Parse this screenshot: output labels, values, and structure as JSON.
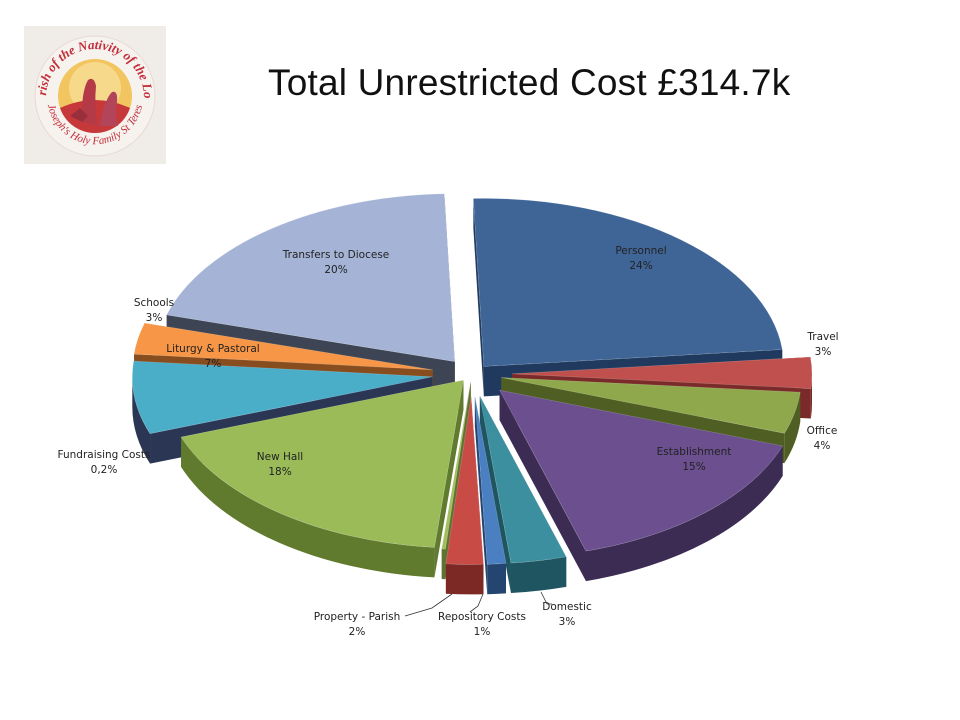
{
  "logo": {
    "ring_top": "Parish of the Nativity of the Lord",
    "ring_bottom": "St Joseph's Holy Family St Teresa's",
    "colors": {
      "ring": "#c42d3a",
      "center_sun": "#f1b63d",
      "center_red": "#c7383b"
    }
  },
  "chart_data": {
    "type": "pie",
    "style": "3d-exploded",
    "title": "Total Unrestricted Cost £314.7k",
    "slices": [
      {
        "label": "Personnel",
        "value_label": "24%",
        "value": 24,
        "color": "#3f6597",
        "side_color": "#1f3a5e"
      },
      {
        "label": "Travel",
        "value_label": "3%",
        "value": 3,
        "color": "#c0504d",
        "side_color": "#7a2b29"
      },
      {
        "label": "Office",
        "value_label": "4%",
        "value": 4,
        "color": "#8fa84c",
        "side_color": "#4f5f23"
      },
      {
        "label": "Establishment",
        "value_label": "15%",
        "value": 15,
        "color": "#6b4f8f",
        "side_color": "#3c2b52"
      },
      {
        "label": "Domestic",
        "value_label": "3%",
        "value": 3,
        "color": "#3b8f9e",
        "side_color": "#1f5560"
      },
      {
        "label": "Repository Costs",
        "value_label": "1%",
        "value": 1,
        "color": "#4a7fc1",
        "side_color": "#24456f"
      },
      {
        "label": "Property - Parish",
        "value_label": "2%",
        "value": 2,
        "color": "#c94b46",
        "side_color": "#7c2825"
      },
      {
        "label": "Fundraising Costs",
        "value_label": "0,2%",
        "value": 0.2,
        "color": "#a3bf5b",
        "side_color": "#5e7330"
      },
      {
        "label": "New Hall",
        "value_label": "18%",
        "value": 18,
        "color": "#9bbb59",
        "side_color": "#607a2e"
      },
      {
        "label": "Liturgy & Pastoral",
        "value_label": "7%",
        "value": 7,
        "color": "#4aaec9",
        "side_color": "#2a3654"
      },
      {
        "label": "Schools",
        "value_label": "3%",
        "value": 3,
        "color": "#f79646",
        "side_color": "#874d1e"
      },
      {
        "label": "Transfers to Diocese",
        "value_label": "20%",
        "value": 20,
        "color": "#a5b4d6",
        "side_color": "#3d4453"
      }
    ]
  }
}
